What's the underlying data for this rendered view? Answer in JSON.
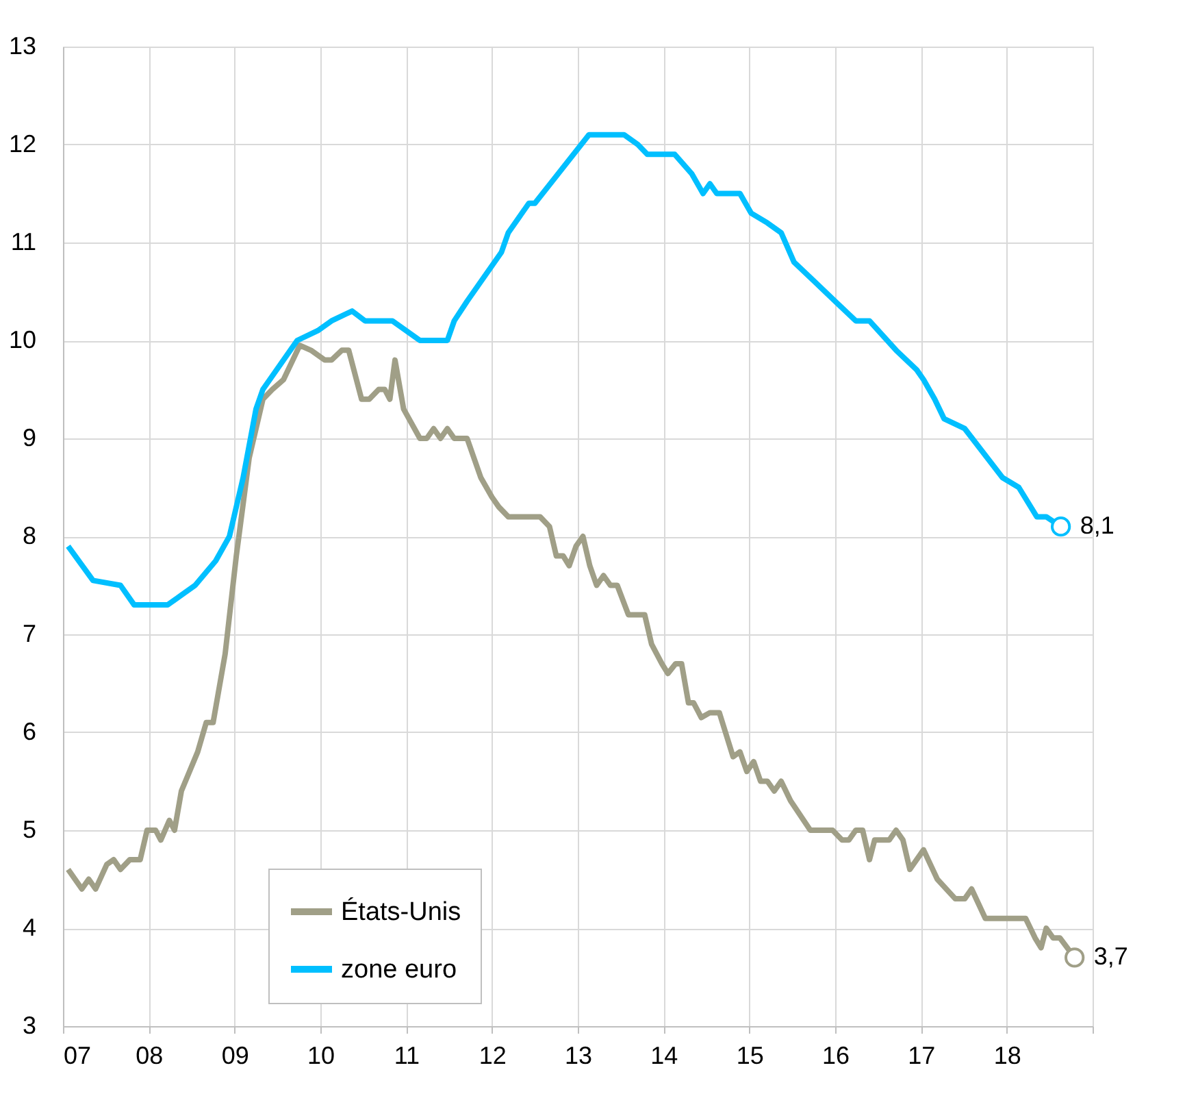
{
  "chart_data": {
    "type": "line",
    "xlim": [
      7,
      19
    ],
    "xticks": [
      {
        "value": 7,
        "label": "07"
      },
      {
        "value": 8,
        "label": "08"
      },
      {
        "value": 9,
        "label": "09"
      },
      {
        "value": 10,
        "label": "10"
      },
      {
        "value": 11,
        "label": "11"
      },
      {
        "value": 12,
        "label": "12"
      },
      {
        "value": 13,
        "label": "13"
      },
      {
        "value": 14,
        "label": "14"
      },
      {
        "value": 15,
        "label": "15"
      },
      {
        "value": 16,
        "label": "16"
      },
      {
        "value": 17,
        "label": "17"
      },
      {
        "value": 18,
        "label": "18"
      },
      {
        "value": 19,
        "label": null
      }
    ],
    "ylim": [
      3,
      13
    ],
    "yticks": [
      3,
      4,
      5,
      6,
      7,
      8,
      9,
      10,
      11,
      12,
      13
    ],
    "grid": true,
    "legend": "bottom left",
    "line_style": "solid",
    "series": [
      {
        "name": "États-Unis",
        "color": "#a09f87",
        "x": [
          7.06,
          7.22,
          7.3,
          7.38,
          7.51,
          7.59,
          7.67,
          7.78,
          7.9,
          7.98,
          8.08,
          8.14,
          8.24,
          8.3,
          8.38,
          8.57,
          8.67,
          8.75,
          8.89,
          9.02,
          9.17,
          9.33,
          9.44,
          9.57,
          9.76,
          9.89,
          10.05,
          10.13,
          10.25,
          10.33,
          10.48,
          10.57,
          10.68,
          10.75,
          10.81,
          10.87,
          10.97,
          11.16,
          11.24,
          11.32,
          11.4,
          11.48,
          11.56,
          11.71,
          11.87,
          12.0,
          12.08,
          12.19,
          12.56,
          12.67,
          12.75,
          12.83,
          12.9,
          12.98,
          13.06,
          13.14,
          13.22,
          13.3,
          13.38,
          13.46,
          13.59,
          13.78,
          13.86,
          13.98,
          14.05,
          14.14,
          14.21,
          14.29,
          14.35,
          14.44,
          14.54,
          14.65,
          14.81,
          14.89,
          14.97,
          15.05,
          15.13,
          15.21,
          15.29,
          15.37,
          15.48,
          15.71,
          15.97,
          16.08,
          16.16,
          16.24,
          16.32,
          16.4,
          16.46,
          16.63,
          16.71,
          16.79,
          16.87,
          17.03,
          17.19,
          17.4,
          17.51,
          17.59,
          17.75,
          18.22,
          18.33,
          18.4,
          18.46,
          18.54,
          18.62,
          18.79
        ],
        "values": [
          4.6,
          4.4,
          4.5,
          4.4,
          4.65,
          4.7,
          4.6,
          4.7,
          4.7,
          5.0,
          5.0,
          4.9,
          5.1,
          5.0,
          5.4,
          5.8,
          6.1,
          6.1,
          6.8,
          7.8,
          8.8,
          9.4,
          9.5,
          9.6,
          9.95,
          9.9,
          9.8,
          9.8,
          9.9,
          9.9,
          9.4,
          9.4,
          9.5,
          9.5,
          9.4,
          9.8,
          9.3,
          9.0,
          9.0,
          9.1,
          9.0,
          9.1,
          9.0,
          9.0,
          8.6,
          8.4,
          8.3,
          8.2,
          8.2,
          8.1,
          7.8,
          7.8,
          7.7,
          7.9,
          8.0,
          7.7,
          7.5,
          7.6,
          7.5,
          7.5,
          7.2,
          7.2,
          6.9,
          6.7,
          6.6,
          6.7,
          6.7,
          6.3,
          6.3,
          6.15,
          6.2,
          6.2,
          5.75,
          5.8,
          5.6,
          5.7,
          5.5,
          5.5,
          5.4,
          5.5,
          5.3,
          5.0,
          5.0,
          4.9,
          4.9,
          5.0,
          5.0,
          4.7,
          4.9,
          4.9,
          5.0,
          4.9,
          4.6,
          4.8,
          4.5,
          4.3,
          4.3,
          4.4,
          4.1,
          4.1,
          3.9,
          3.8,
          4.0,
          3.9,
          3.9,
          3.7
        ]
      },
      {
        "name": "zone euro",
        "color": "#00bfff",
        "x": [
          7.06,
          7.35,
          7.67,
          7.83,
          8.22,
          8.38,
          8.54,
          8.78,
          8.94,
          9.1,
          9.25,
          9.33,
          9.73,
          9.97,
          10.13,
          10.37,
          10.52,
          10.84,
          11.0,
          11.16,
          11.48,
          11.56,
          11.71,
          12.11,
          12.19,
          12.43,
          12.5,
          13.13,
          13.54,
          13.7,
          13.81,
          14.13,
          14.33,
          14.46,
          14.54,
          14.62,
          14.89,
          15.02,
          15.21,
          15.37,
          15.52,
          15.76,
          16.0,
          16.24,
          16.4,
          16.71,
          16.95,
          17.03,
          17.16,
          17.27,
          17.51,
          17.95,
          18.14,
          18.35,
          18.46,
          18.63
        ],
        "values": [
          7.9,
          7.55,
          7.5,
          7.3,
          7.3,
          7.4,
          7.5,
          7.75,
          8.0,
          8.6,
          9.3,
          9.5,
          10.0,
          10.1,
          10.2,
          10.3,
          10.2,
          10.2,
          10.1,
          10.0,
          10.0,
          10.2,
          10.4,
          10.9,
          11.1,
          11.4,
          11.4,
          12.1,
          12.1,
          12.0,
          11.9,
          11.9,
          11.7,
          11.5,
          11.6,
          11.5,
          11.5,
          11.3,
          11.2,
          11.1,
          10.8,
          10.6,
          10.4,
          10.2,
          10.2,
          9.9,
          9.7,
          9.6,
          9.4,
          9.2,
          9.1,
          8.6,
          8.5,
          8.2,
          8.2,
          8.1
        ]
      }
    ],
    "annotations": [
      {
        "text": "8,1",
        "x": 18.63,
        "y": 8.1
      },
      {
        "text": "3,7",
        "x": 18.79,
        "y": 3.7
      }
    ]
  }
}
